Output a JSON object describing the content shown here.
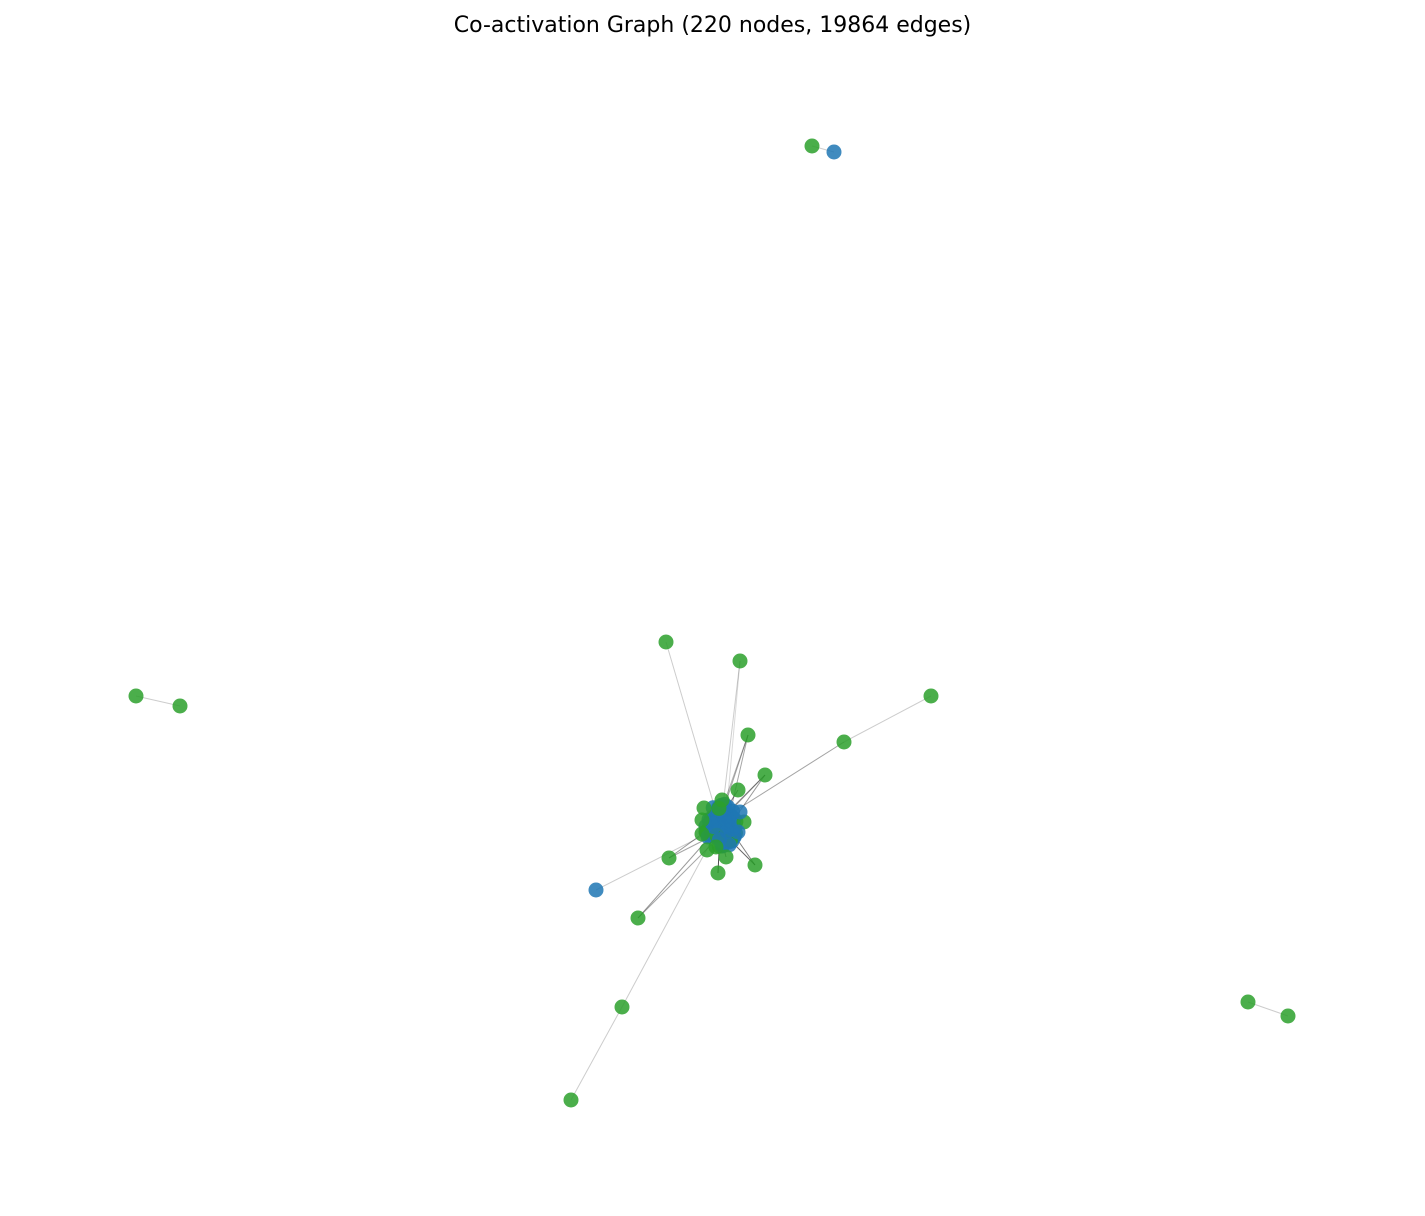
{
  "title": "Co-activation Graph (220 nodes, 19864 edges)",
  "colors": {
    "green_node": "#2ca02c",
    "blue_node": "#1f77b4",
    "edge": "#000000",
    "background": "#ffffff"
  }
}
